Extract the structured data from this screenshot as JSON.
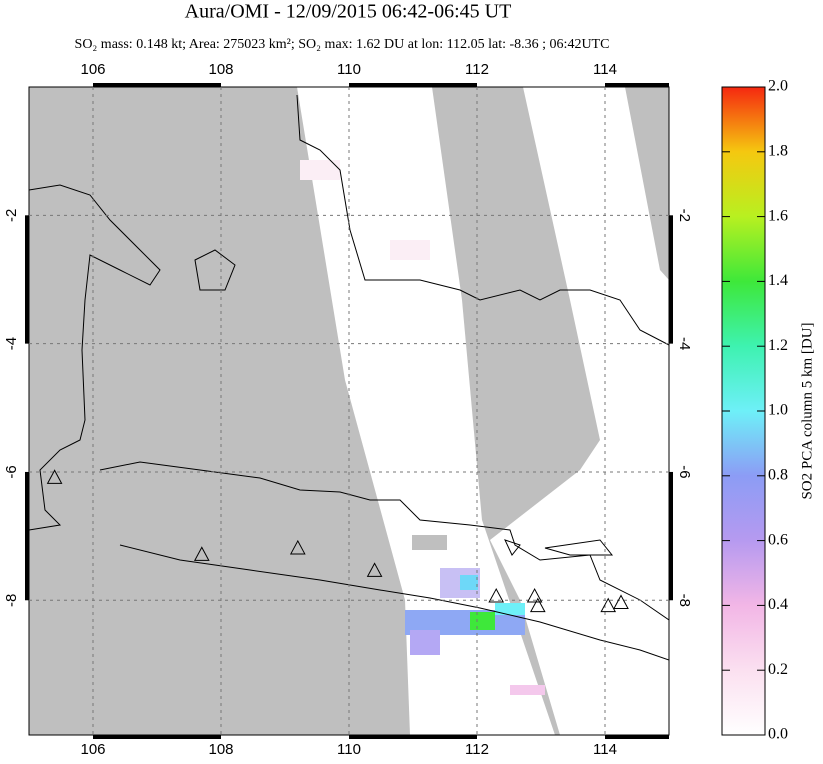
{
  "chart_data": {
    "type": "map",
    "title": "Aura/OMI - 12/09/2015 06:42-06:45 UT",
    "subtitle": "SO₂ mass: 0.148 kt; Area: 275023 km²; SO₂ max: 1.62 DU at lon: 112.05 lat: -8.36 ; 06:42UTC",
    "xlim": [
      105,
      115
    ],
    "xticks": [
      106,
      108,
      110,
      112,
      114
    ],
    "ylim": [
      -10.1,
      0
    ],
    "yticks": [
      -2,
      -4,
      -6,
      -8
    ],
    "grid": true,
    "volcanoes": {
      "x": [
        105.4,
        107.7,
        109.2,
        110.4,
        112.3,
        112.9,
        112.95,
        114.05,
        114.25
      ],
      "y": [
        -6.1,
        -7.3,
        -7.2,
        -7.55,
        -7.95,
        -7.95,
        -8.1,
        -8.1,
        -8.05
      ]
    },
    "colorbar": {
      "label": "SO2 PCA column 5 km [DU]",
      "lim": [
        0,
        2
      ],
      "ticks": [
        {
          "value": 0,
          "label": "0.0"
        },
        0.2,
        0.4,
        0.6,
        0.8,
        {
          "value": 1,
          "label": "1.0"
        },
        1.2,
        1.4,
        1.6,
        1.8,
        {
          "value": 2,
          "label": "2.0"
        }
      ]
    }
  }
}
